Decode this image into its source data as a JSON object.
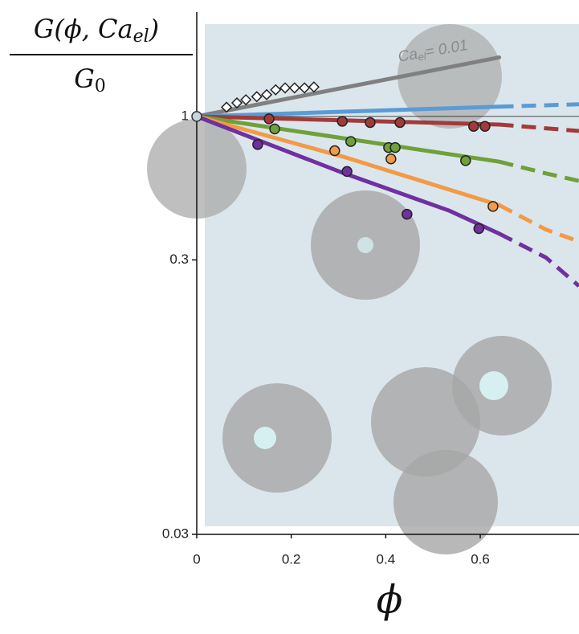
{
  "chart_data": {
    "type": "line",
    "ylabel": {
      "numerator": [
        "G(ϕ, Ca",
        "el",
        ")"
      ],
      "denominator": [
        "G",
        "0"
      ]
    },
    "xlabel": "ϕ",
    "annotation": [
      "Ca",
      "el",
      "= 0.01"
    ],
    "xlim": [
      0,
      0.809
    ],
    "xticks": [
      0,
      0.2,
      0.4,
      0.6
    ],
    "ylim": [
      0.03,
      2.4
    ],
    "yticks": [
      0.03,
      0.3,
      1
    ],
    "log_y": true,
    "reference_line": 1,
    "series": [
      {
        "color": "#808080",
        "style": "solid",
        "x": [
          0,
          0.64
        ],
        "values": [
          1,
          1.64
        ]
      },
      {
        "color": "#5b9bd5",
        "style": "solid",
        "x": [
          0,
          0.64
        ],
        "values": [
          1,
          1.085
        ]
      },
      {
        "color": "#5b9bd5",
        "style": "dashed",
        "x": [
          0.64,
          0.809
        ],
        "values": [
          1.085,
          1.107
        ]
      },
      {
        "color": "#a33a3a",
        "style": "solid",
        "x": [
          0,
          0.64
        ],
        "values": [
          1,
          0.934
        ]
      },
      {
        "color": "#a33a3a",
        "style": "dashed",
        "x": [
          0.64,
          0.809
        ],
        "values": [
          0.934,
          0.885
        ]
      },
      {
        "color": "#70a03a",
        "style": "solid",
        "x": [
          0,
          0.31,
          0.64
        ],
        "values": [
          1,
          0.833,
          0.684
        ]
      },
      {
        "color": "#70a03a",
        "style": "dashed",
        "x": [
          0.64,
          0.739,
          0.809
        ],
        "values": [
          0.684,
          0.62,
          0.582
        ]
      },
      {
        "color": "#f29a45",
        "style": "solid",
        "x": [
          0,
          0.31,
          0.64
        ],
        "values": [
          1,
          0.713,
          0.475
        ]
      },
      {
        "color": "#f29a45",
        "style": "dashed",
        "x": [
          0.64,
          0.739,
          0.809
        ],
        "values": [
          0.475,
          0.387,
          0.35
        ]
      },
      {
        "color": "#7030a0",
        "style": "solid",
        "x": [
          0,
          0.31,
          0.535,
          0.64
        ],
        "values": [
          1,
          0.622,
          0.453,
          0.374
        ]
      },
      {
        "color": "#7030a0",
        "style": "dashed",
        "x": [
          0.64,
          0.739,
          0.809
        ],
        "values": [
          0.374,
          0.306,
          0.241
        ]
      }
    ],
    "points": [
      {
        "color": "#ffffff",
        "marker": "diamond",
        "x": [
          0.063,
          0.085,
          0.104,
          0.127,
          0.148,
          0.167,
          0.187,
          0.207,
          0.228,
          0.248
        ],
        "values": [
          1.08,
          1.12,
          1.15,
          1.18,
          1.2,
          1.25,
          1.27,
          1.27,
          1.27,
          1.28
        ]
      },
      {
        "color": "#a33a3a",
        "marker": "circle",
        "x": [
          0.153,
          0.308,
          0.367,
          0.43,
          0.586,
          0.61
        ],
        "values": [
          0.98,
          0.96,
          0.95,
          0.95,
          0.92,
          0.92
        ]
      },
      {
        "color": "#70a03a",
        "marker": "circle",
        "x": [
          0.165,
          0.326,
          0.406,
          0.42,
          0.569
        ],
        "values": [
          0.9,
          0.81,
          0.77,
          0.77,
          0.69
        ]
      },
      {
        "color": "#f29a45",
        "marker": "circle",
        "x": [
          0.292,
          0.411,
          0.627
        ],
        "values": [
          0.75,
          0.7,
          0.47
        ]
      },
      {
        "color": "#7030a0",
        "marker": "circle",
        "x": [
          0.129,
          0.318,
          0.445,
          0.597
        ],
        "values": [
          0.79,
          0.63,
          0.44,
          0.39
        ]
      },
      {
        "color": "#c8d6df",
        "marker": "circle",
        "x": [
          0
        ],
        "values": [
          1
        ]
      }
    ]
  }
}
